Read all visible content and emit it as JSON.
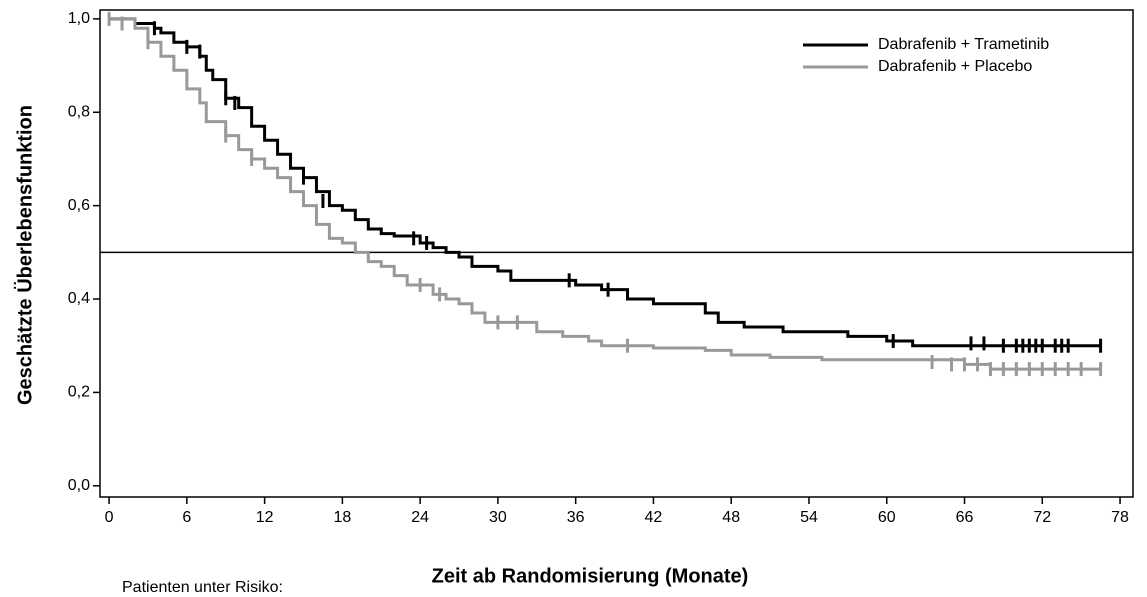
{
  "chart_data": {
    "type": "line",
    "step": "post",
    "x_label": "Zeit ab Randomisierung (Monate)",
    "y_label": "Geschätzte Überlebensfunktion",
    "note": "Patienten unter Risiko:",
    "xlim": [
      -0.7,
      79.0
    ],
    "ylim": [
      -0.024,
      1.019
    ],
    "xticks": [
      0,
      6,
      12,
      18,
      24,
      30,
      36,
      42,
      48,
      54,
      60,
      66,
      72,
      78
    ],
    "yticks": [
      {
        "value": 0,
        "label": "0,0"
      },
      {
        "value": 0.2,
        "label": "0,2"
      },
      {
        "value": 0.4,
        "label": "0,4"
      },
      {
        "value": 0.6,
        "label": "0,6"
      },
      {
        "value": 0.8,
        "label": "0,8"
      },
      {
        "value": 1,
        "label": "1,0"
      }
    ],
    "reference_line": 0.5,
    "legend_position": "upper right",
    "series": [
      {
        "name": "Dabrafenib + Trametinib",
        "color": "#000000",
        "x": [
          0,
          2,
          3.5,
          4,
          5,
          6,
          7,
          7.5,
          8,
          9,
          10,
          11,
          12,
          13,
          14,
          15,
          16,
          17,
          18,
          19,
          20,
          21,
          22,
          24,
          25,
          26,
          27,
          28,
          30,
          31,
          36,
          38,
          40,
          42,
          46,
          47,
          49,
          52,
          57,
          60,
          62,
          76.5
        ],
        "values": [
          1.0,
          0.99,
          0.98,
          0.97,
          0.95,
          0.94,
          0.92,
          0.89,
          0.87,
          0.83,
          0.81,
          0.77,
          0.74,
          0.71,
          0.68,
          0.66,
          0.63,
          0.6,
          0.59,
          0.57,
          0.55,
          0.54,
          0.535,
          0.52,
          0.51,
          0.5,
          0.49,
          0.47,
          0.46,
          0.44,
          0.43,
          0.42,
          0.4,
          0.39,
          0.37,
          0.35,
          0.34,
          0.33,
          0.32,
          0.31,
          0.3,
          0.3
        ],
        "censor_x": [
          3.5,
          6,
          7,
          9,
          9.7,
          15,
          16.5,
          23.5,
          24.5,
          35.5,
          38.5,
          60.5,
          66.5,
          67.5,
          69,
          70,
          70.5,
          71,
          71.5,
          72,
          73,
          73.5,
          74,
          76.5
        ],
        "censor_values": [
          0.98,
          0.94,
          0.93,
          0.83,
          0.82,
          0.66,
          0.61,
          0.53,
          0.52,
          0.44,
          0.42,
          0.31,
          0.305,
          0.305,
          0.3,
          0.3,
          0.3,
          0.3,
          0.3,
          0.3,
          0.3,
          0.3,
          0.3,
          0.3
        ]
      },
      {
        "name": "Dabrafenib + Placebo",
        "color": "#999999",
        "x": [
          0,
          2,
          3,
          4,
          5,
          6,
          7,
          7.5,
          9,
          10,
          11,
          12,
          13,
          14,
          15,
          16,
          17,
          18,
          19,
          20,
          21,
          22,
          23,
          25,
          26,
          27,
          28,
          29,
          33,
          35,
          37,
          38,
          42,
          46,
          48,
          51,
          55,
          66,
          68,
          76.5
        ],
        "values": [
          1.0,
          0.98,
          0.95,
          0.92,
          0.89,
          0.85,
          0.82,
          0.78,
          0.75,
          0.72,
          0.7,
          0.68,
          0.66,
          0.63,
          0.6,
          0.56,
          0.53,
          0.52,
          0.5,
          0.48,
          0.47,
          0.45,
          0.43,
          0.41,
          0.4,
          0.39,
          0.37,
          0.35,
          0.33,
          0.32,
          0.31,
          0.3,
          0.295,
          0.29,
          0.28,
          0.275,
          0.27,
          0.26,
          0.25,
          0.25
        ],
        "censor_x": [
          0,
          1,
          3,
          9,
          11,
          24,
          25.5,
          30,
          31.5,
          40,
          63.5,
          65,
          66,
          67,
          68,
          69,
          70,
          71,
          72,
          73,
          74,
          75,
          76.5
        ],
        "censor_values": [
          1.0,
          0.99,
          0.95,
          0.75,
          0.7,
          0.43,
          0.41,
          0.35,
          0.35,
          0.3,
          0.265,
          0.26,
          0.26,
          0.26,
          0.25,
          0.25,
          0.25,
          0.25,
          0.25,
          0.25,
          0.25,
          0.25,
          0.25
        ]
      }
    ]
  }
}
